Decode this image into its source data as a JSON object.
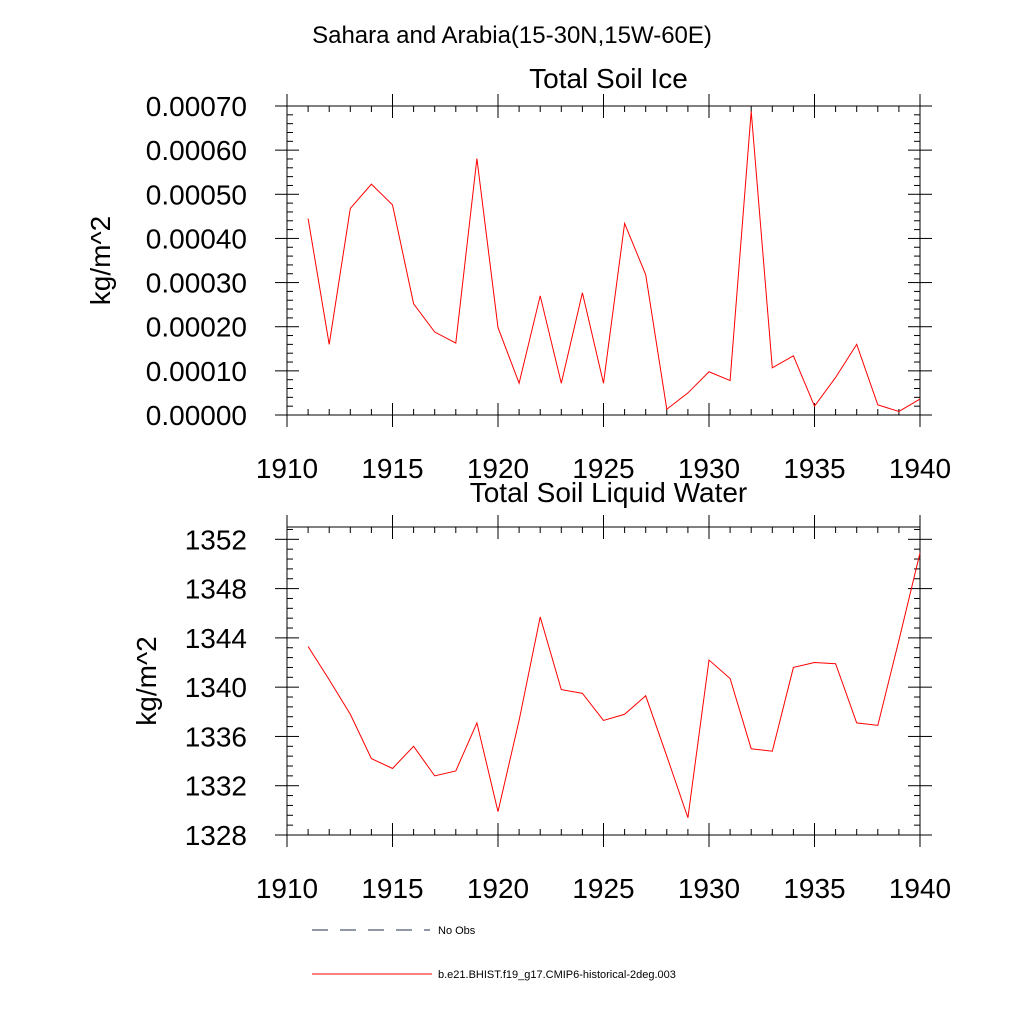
{
  "page_title": "Sahara and Arabia(15-30N,15W-60E)",
  "colors": {
    "series": "#ff0000",
    "axis": "#000000",
    "no_obs": "#4d5a73"
  },
  "legend": {
    "items": [
      {
        "label": "No Obs",
        "style": "dashed"
      },
      {
        "label": "b.e21.BHIST.f19_g17.CMIP6-historical-2deg.003",
        "style": "solid"
      }
    ]
  },
  "chart_data": [
    {
      "type": "line",
      "title": "Total Soil Ice",
      "xlabel": "",
      "ylabel": "kg/m^2",
      "xlim": [
        1910,
        1940
      ],
      "ylim": [
        0.0,
        0.0007
      ],
      "x_ticks": [
        1910,
        1915,
        1920,
        1925,
        1930,
        1935,
        1940
      ],
      "x_tick_labels": [
        "1910",
        "1915",
        "1920",
        "1925",
        "1930",
        "1935",
        "1940"
      ],
      "y_ticks": [
        0.0,
        0.0001,
        0.0002,
        0.0003,
        0.0004,
        0.0005,
        0.0006,
        0.0007
      ],
      "y_tick_labels": [
        "0.00000",
        "0.00010",
        "0.00020",
        "0.00030",
        "0.00040",
        "0.00050",
        "0.00060",
        "0.00070"
      ],
      "grid": false,
      "series": [
        {
          "name": "b.e21.BHIST.f19_g17.CMIP6-historical-2deg.003",
          "x": [
            1911,
            1912,
            1913,
            1914,
            1915,
            1916,
            1917,
            1918,
            1919,
            1920,
            1921,
            1922,
            1923,
            1924,
            1925,
            1926,
            1927,
            1928,
            1929,
            1930,
            1931,
            1932,
            1933,
            1934,
            1935,
            1936,
            1937,
            1938,
            1939,
            1940
          ],
          "values": [
            0.000445,
            0.00016,
            0.000468,
            0.000523,
            0.000476,
            0.000252,
            0.000188,
            0.000163,
            0.000581,
            0.000198,
            7.2e-05,
            0.00027,
            7.2e-05,
            0.000277,
            7.2e-05,
            0.000434,
            0.000318,
            1.3e-05,
            5e-05,
            9.8e-05,
            7.8e-05,
            0.000688,
            0.000107,
            0.000134,
            2e-05,
            8.5e-05,
            0.00016,
            2.3e-05,
            8e-06,
            3.6e-05
          ]
        }
      ]
    },
    {
      "type": "line",
      "title": "Total Soil Liquid Water",
      "xlabel": "",
      "ylabel": "kg/m^2",
      "xlim": [
        1910,
        1940
      ],
      "ylim": [
        1328,
        1353
      ],
      "x_ticks": [
        1910,
        1915,
        1920,
        1925,
        1930,
        1935,
        1940
      ],
      "x_tick_labels": [
        "1910",
        "1915",
        "1920",
        "1925",
        "1930",
        "1935",
        "1940"
      ],
      "y_ticks": [
        1328,
        1332,
        1336,
        1340,
        1344,
        1348,
        1352
      ],
      "y_tick_labels": [
        "1328",
        "1332",
        "1336",
        "1340",
        "1344",
        "1348",
        "1352"
      ],
      "grid": false,
      "series": [
        {
          "name": "b.e21.BHIST.f19_g17.CMIP6-historical-2deg.003",
          "x": [
            1911,
            1912,
            1913,
            1914,
            1915,
            1916,
            1917,
            1918,
            1919,
            1920,
            1921,
            1922,
            1923,
            1924,
            1925,
            1926,
            1927,
            1928,
            1929,
            1930,
            1931,
            1932,
            1933,
            1934,
            1935,
            1936,
            1937,
            1938,
            1939,
            1940
          ],
          "values": [
            1343.3,
            1340.6,
            1337.8,
            1334.2,
            1333.4,
            1335.2,
            1332.8,
            1333.2,
            1337.1,
            1329.9,
            1337.3,
            1345.7,
            1339.8,
            1339.5,
            1337.3,
            1337.8,
            1339.3,
            1334.4,
            1329.4,
            1342.2,
            1340.7,
            1335.0,
            1334.8,
            1341.6,
            1342.0,
            1341.9,
            1337.1,
            1336.9,
            1343.8,
            1350.9
          ]
        }
      ]
    }
  ]
}
